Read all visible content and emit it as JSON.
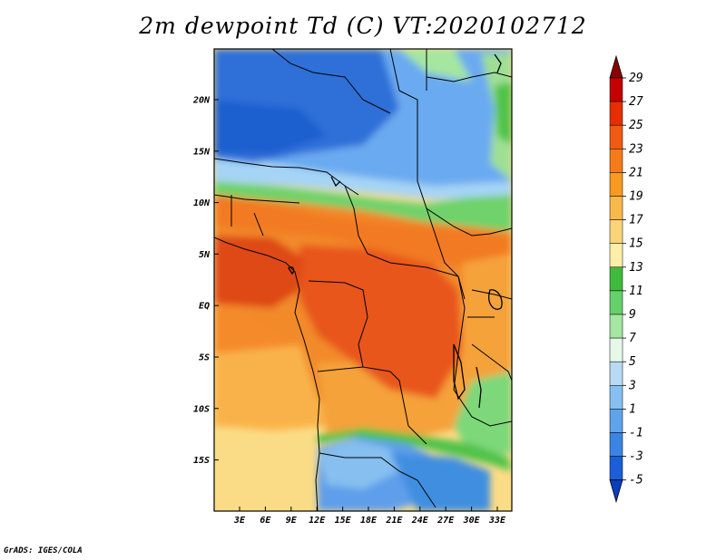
{
  "title": "2m dewpoint Td (C) VT:2020102712",
  "credit": "GrADS: IGES/COLA",
  "lat_labels": [
    "20N",
    "15N",
    "10N",
    "5N",
    "EQ",
    "5S",
    "10S",
    "15S"
  ],
  "lon_labels": [
    "3E",
    "6E",
    "9E",
    "12E",
    "15E",
    "18E",
    "21E",
    "24E",
    "27E",
    "30E",
    "33E"
  ],
  "colorbar": {
    "labels": [
      "29",
      "27",
      "25",
      "23",
      "21",
      "19",
      "17",
      "15",
      "13",
      "11",
      "9",
      "7",
      "5",
      "3",
      "1",
      "-1",
      "-3",
      "-5"
    ],
    "colors": [
      "#8b0000",
      "#c40000",
      "#e62e00",
      "#f05a12",
      "#f57a1a",
      "#f79a1f",
      "#f9b84a",
      "#fbd47a",
      "#fdeeaa",
      "#3fba3c",
      "#66d06a",
      "#a5e6a0",
      "#e6f8e8",
      "#b8daf5",
      "#86c0f0",
      "#5fa3ea",
      "#3b85e2",
      "#1a5fd8",
      "#0a3fbf"
    ]
  },
  "legend_colors": {
    "ocean_south": "#fbdc86",
    "ocean_mid": "#f9b24a",
    "congo": "#e8561a",
    "west_coast": "#de4a14",
    "savanna": "#f28a2a",
    "sahel_green": "#6fd26a",
    "sahara_dark": "#2f6fd8",
    "sahara_light": "#6aaaf0",
    "angola_blue": "#5e9eea"
  }
}
